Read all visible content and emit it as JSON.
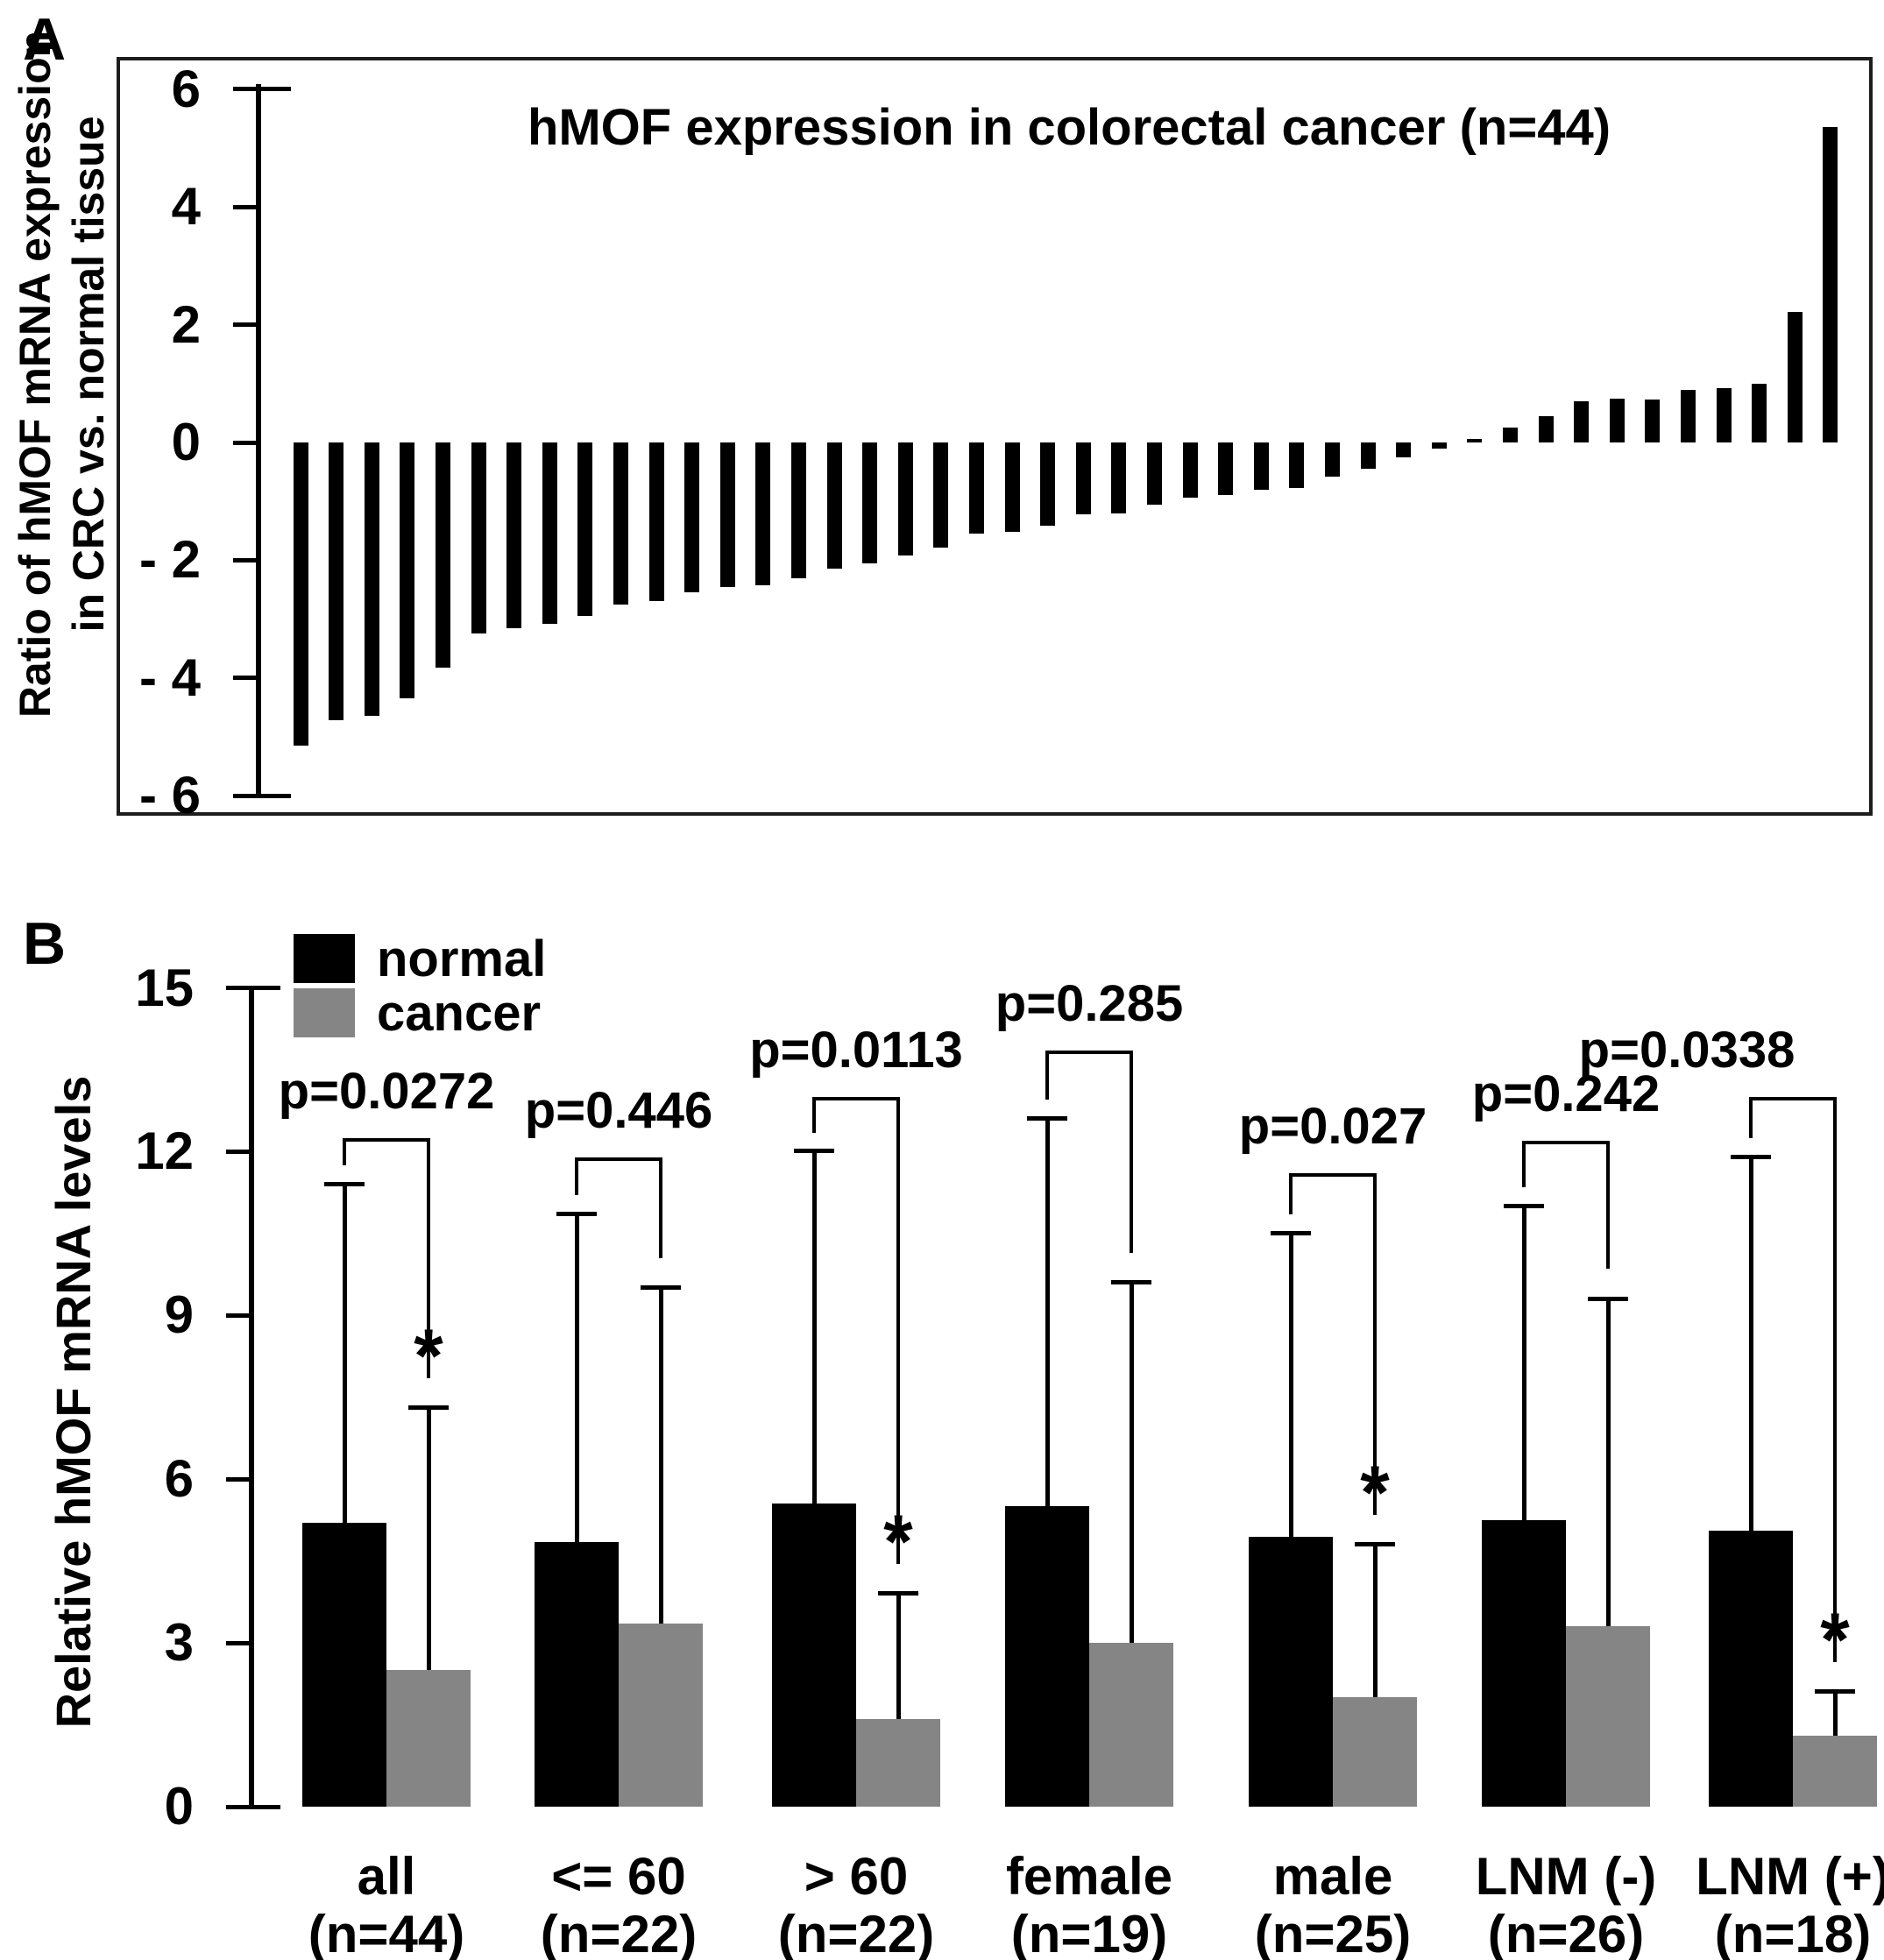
{
  "panel_a": {
    "letter": "A",
    "title": "hMOF expression in colorectal cancer (n=44)",
    "y_label_line1": "Ratio of hMOF mRNA expression",
    "y_label_line2": "in CRC vs. normal tissue"
  },
  "panel_b": {
    "letter": "B",
    "y_label": "Relative hMOF mRNA levels",
    "legend": [
      {
        "label": "normal",
        "color": "#000000"
      },
      {
        "label": "cancer",
        "color": "#858585"
      }
    ]
  },
  "colors": {
    "normal": "#000000",
    "cancer": "#858585",
    "ink": "#000000"
  },
  "chart_data": [
    {
      "type": "bar",
      "title": "hMOF expression in colorectal cancer (n=44)",
      "ylabel": "Ratio of hMOF mRNA expression in CRC vs. normal tissue",
      "ylim": [
        -6,
        6
      ],
      "yticks": [
        6,
        4,
        2,
        0,
        -2,
        -4,
        -6
      ],
      "grid": false,
      "n": 44,
      "values": [
        -5.15,
        -4.72,
        -4.65,
        -4.35,
        -3.82,
        -3.25,
        -3.15,
        -3.08,
        -2.95,
        -2.75,
        -2.7,
        -2.55,
        -2.45,
        -2.42,
        -2.3,
        -2.15,
        -2.05,
        -1.92,
        -1.78,
        -1.55,
        -1.52,
        -1.42,
        -1.22,
        -1.2,
        -1.06,
        -0.94,
        -0.9,
        -0.8,
        -0.78,
        -0.58,
        -0.45,
        -0.25,
        -0.1,
        0.06,
        0.25,
        0.44,
        0.7,
        0.75,
        0.73,
        0.9,
        0.92,
        1.0,
        2.22,
        5.35
      ]
    },
    {
      "type": "grouped-bar-with-error",
      "ylabel": "Relative hMOF mRNA levels",
      "ylim": [
        0,
        15
      ],
      "yticks": [
        0,
        3,
        6,
        9,
        12,
        15
      ],
      "grid": false,
      "legend_position": "top-left",
      "categories": [
        "all",
        "<= 60",
        "> 60",
        "female",
        "male",
        "LNM (-)",
        "LNM (+)"
      ],
      "n_labels": [
        "(n=44)",
        "(n=22)",
        "(n=22)",
        "(n=19)",
        "(n=25)",
        "(n=26)",
        "(n=18)"
      ],
      "series": [
        {
          "name": "normal",
          "color": "#000000",
          "values": [
            5.2,
            4.85,
            5.55,
            5.5,
            4.95,
            5.25,
            5.05
          ],
          "error_tops": [
            11.4,
            10.85,
            12.0,
            12.6,
            10.5,
            11.0,
            11.9
          ]
        },
        {
          "name": "cancer",
          "color": "#858585",
          "values": [
            2.5,
            3.35,
            1.6,
            3.0,
            2.0,
            3.3,
            1.3
          ],
          "error_tops": [
            7.3,
            9.5,
            3.9,
            9.6,
            4.8,
            9.3,
            2.1
          ]
        }
      ],
      "p_values": [
        "p=0.0272",
        "p=0.446",
        "p=0.0113",
        "p=0.285",
        "p=0.027",
        "p=0.242",
        "p=0.0338"
      ],
      "significant_cancer": [
        true,
        false,
        true,
        false,
        true,
        false,
        true
      ],
      "significance_symbol": "*",
      "bracket_tops": [
        12.25,
        11.9,
        13.0,
        13.85,
        11.6,
        12.2,
        13.0
      ]
    }
  ]
}
